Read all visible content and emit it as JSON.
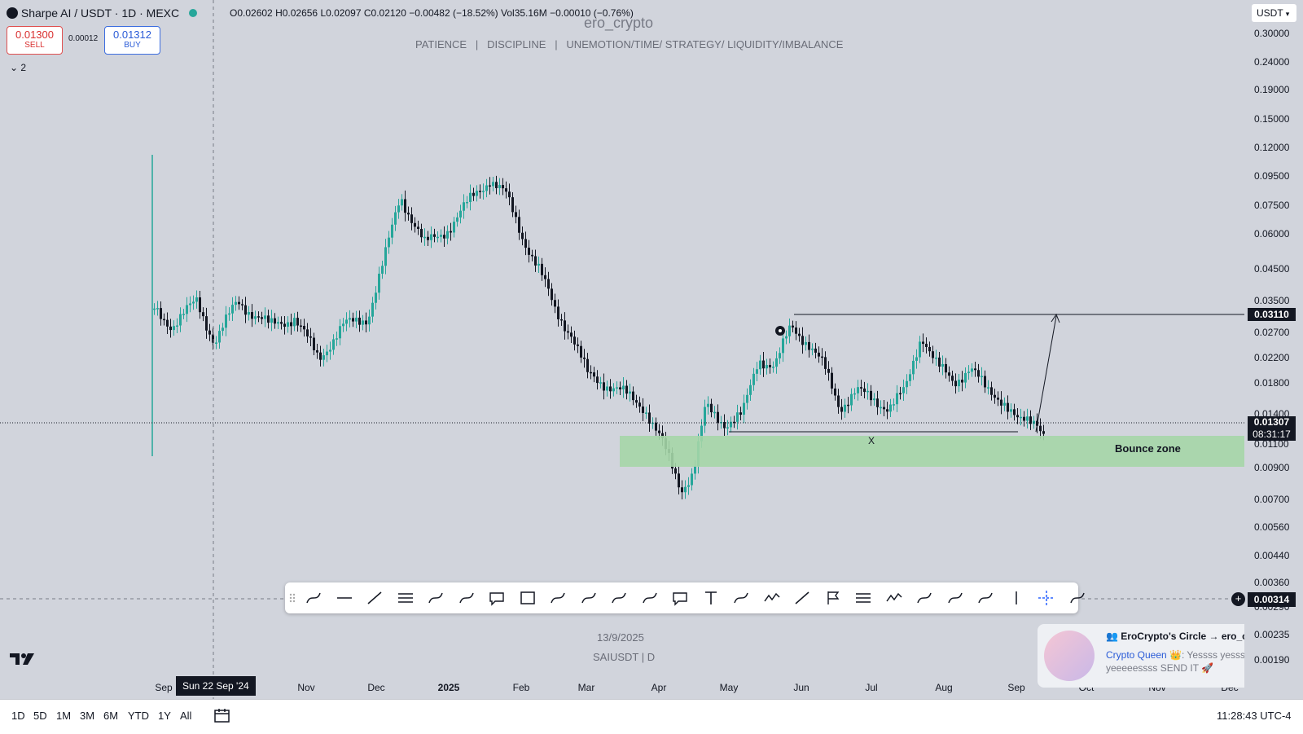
{
  "header": {
    "symbol_title": "Sharpe AI / USDT · 1D · MEXC",
    "open": "O0.02602",
    "high": "H0.02656",
    "low": "L0.02097",
    "close": "C0.02120",
    "change": "−0.00482 (−18.52%)",
    "volume": "Vol35.16M",
    "volume_change": "−0.00010 (−0.76%)",
    "indicator_count": "2"
  },
  "trade": {
    "sell_price": "0.01300",
    "sell_label": "SELL",
    "spread": "0.00012",
    "buy_price": "0.01312",
    "buy_label": "BUY"
  },
  "watermark": {
    "author": "ero_crypto",
    "tagline": "PATIENCE   |   DISCIPLINE   |   UNEMOTION/TIME/ STRATEGY/ LIQUIDITY/IMBALANCE",
    "date": "13/9/2025",
    "symbol": "SAIUSDT | D"
  },
  "currency_select": "USDT",
  "price_axis": {
    "ticks": [
      "0.30000",
      "0.24000",
      "0.19000",
      "0.15000",
      "0.12000",
      "0.09500",
      "0.07500",
      "0.06000",
      "0.04500",
      "0.03500",
      "0.02700",
      "0.02200",
      "0.01800",
      "0.01400",
      "0.01100",
      "0.00900",
      "0.00700",
      "0.00560",
      "0.00440",
      "0.00360",
      "0.00290",
      "0.00235",
      "0.00190"
    ],
    "target_label": "0.03110",
    "current_price": "0.01307",
    "countdown": "08:31:17",
    "cursor_price": "0.00314"
  },
  "time_axis": {
    "labels": [
      "Sep",
      "Nov",
      "Dec",
      "2025",
      "Feb",
      "Mar",
      "Apr",
      "May",
      "Jun",
      "Jul",
      "Aug",
      "Sep",
      "Oct",
      "Nov",
      "Dec"
    ],
    "cursor_label": "Sun 22 Sep '24"
  },
  "annotations": {
    "zone_label": "Bounce zone",
    "x_mark": "X"
  },
  "timeframes": [
    "1D",
    "5D",
    "1M",
    "3M",
    "6M",
    "YTD",
    "1Y",
    "All"
  ],
  "clock": "11:28:43 UTC-4",
  "notification": {
    "title": "EroCrypto's Circle → ero_cr...",
    "author": "Crypto Queen 👑",
    "message": ": Yessss yessss yeeeeessss SEND IT 🚀"
  },
  "colors": {
    "bull": "#26a69a",
    "bear": "#131722",
    "zone": "#a5d6a7",
    "background": "#d1d4dc"
  },
  "toolbar_icons": [
    "drag-handle-icon",
    "cyclic-lines-icon",
    "horizontal-line-icon",
    "trend-line-icon",
    "parallel-channel-icon",
    "horizontal-ray-icon",
    "pitchfork-icon",
    "callout-icon",
    "rectangle-icon",
    "long-position-icon",
    "price-range-icon",
    "arrow-marker-icon",
    "brush-icon",
    "comment-icon",
    "text-icon",
    "curve-icon",
    "path-icon",
    "arrow-icon",
    "flag-icon",
    "fib-icon",
    "elliott-wave-icon",
    "bars-pattern-icon",
    "anchor-icon",
    "date-range-icon",
    "vertical-line-icon",
    "crosshair-icon",
    "highlighter-icon"
  ]
}
